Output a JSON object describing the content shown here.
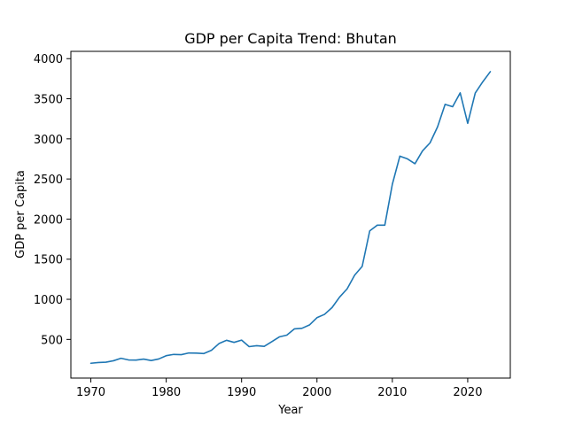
{
  "chart_data": {
    "type": "line",
    "title": "GDP per Capita Trend: Bhutan",
    "xlabel": "Year",
    "ylabel": "GDP per Capita",
    "xlim": [
      1967.35,
      2025.65
    ],
    "ylim": [
      18,
      4091
    ],
    "x_ticks": [
      1970,
      1980,
      1990,
      2000,
      2010,
      2020
    ],
    "y_ticks": [
      500,
      1000,
      1500,
      2000,
      2500,
      3000,
      3500,
      4000
    ],
    "grid": false,
    "line_color": "#1f77b4",
    "series": [
      {
        "x": [
          1970,
          1971,
          1972,
          1973,
          1974,
          1975,
          1976,
          1977,
          1978,
          1979,
          1980,
          1981,
          1982,
          1983,
          1984,
          1985,
          1986,
          1987,
          1988,
          1989,
          1990,
          1991,
          1992,
          1993,
          1994,
          1995,
          1996,
          1997,
          1998,
          1999,
          2000,
          2001,
          2002,
          2003,
          2004,
          2005,
          2006,
          2007,
          2008,
          2009,
          2010,
          2011,
          2012,
          2013,
          2014,
          2015,
          2016,
          2017,
          2018,
          2019,
          2020,
          2021,
          2022,
          2023
        ],
        "values": [
          203,
          212,
          216,
          234,
          265,
          244,
          242,
          255,
          237,
          256,
          297,
          313,
          310,
          331,
          329,
          324,
          364,
          448,
          489,
          463,
          491,
          410,
          422,
          413,
          471,
          531,
          553,
          631,
          638,
          680,
          771,
          812,
          897,
          1027,
          1130,
          1301,
          1410,
          1853,
          1924,
          1924,
          2434,
          2785,
          2751,
          2690,
          2850,
          2950,
          3150,
          3430,
          3401,
          3574,
          3194,
          3572,
          3712,
          3838
        ]
      }
    ]
  }
}
